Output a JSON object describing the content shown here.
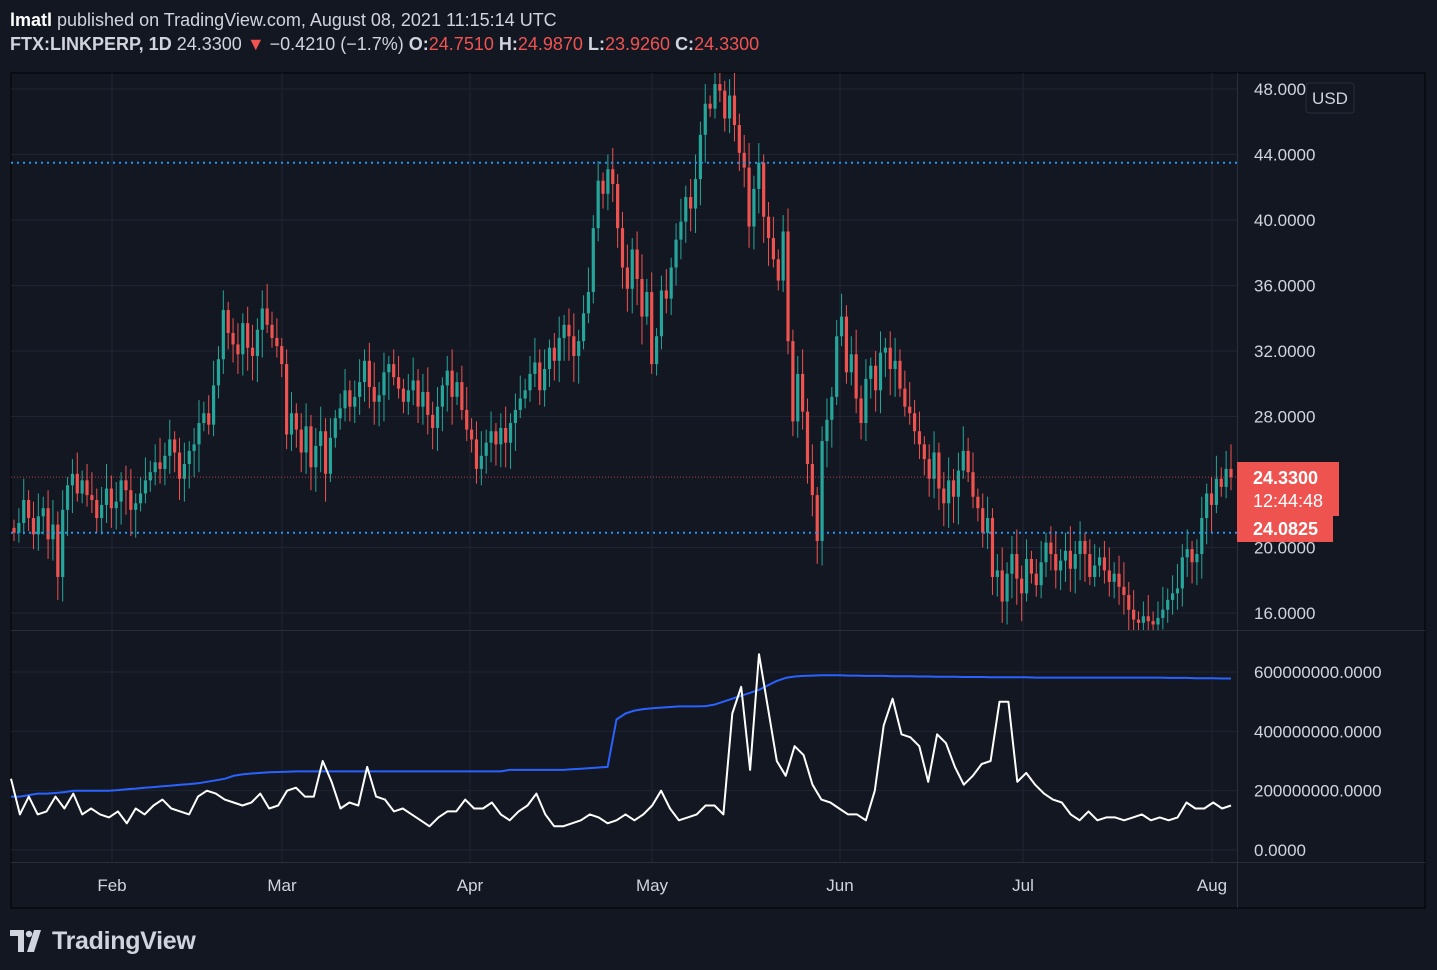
{
  "header": {
    "author": "lmatl",
    "published_text": " published on TradingView.com, August 08, 2021 11:15:14 UTC",
    "symbol": "FTX:LINKPERP, 1D",
    "last": "24.3300",
    "change_arrow": "▼",
    "change": "−0.4210 (−1.7%)",
    "o_label": "O:",
    "o_value": "24.7510",
    "h_label": "H:",
    "h_value": "24.9870",
    "l_label": "L:",
    "l_value": "23.9260",
    "c_label": "C:",
    "c_value": "24.3300"
  },
  "footer": {
    "brand": "TradingView"
  },
  "colors": {
    "background": "#131722",
    "grid": "#1f2433",
    "up": "#26a69a",
    "down": "#ef5350",
    "hline": "#2196f3",
    "volume": "#ffffff",
    "volume_ma": "#2962ff",
    "text": "#d1d4dc"
  },
  "chart_data": [
    {
      "type": "candlestick",
      "currency_label": "USD",
      "y_ticks": [
        "48.0000",
        "44.0000",
        "40.0000",
        "36.0000",
        "32.0000",
        "28.0000",
        "20.0000",
        "16.0000"
      ],
      "y_tick_values": [
        48,
        44,
        40,
        36,
        32,
        28,
        20,
        16
      ],
      "ylim": [
        15,
        49
      ],
      "x_ticks": [
        "Feb",
        "Mar",
        "Apr",
        "May",
        "Jun",
        "Jul",
        "Aug"
      ],
      "horizontal_lines": [
        43.5,
        20.9
      ],
      "last_price_label": "24.3300",
      "countdown_label": "12:44:48",
      "level_label": "24.0825",
      "closes": [
        20.9,
        21.5,
        22.9,
        21.8,
        20.8,
        21.9,
        22.4,
        20.5,
        21.4,
        18.2,
        22.3,
        23.8,
        24.5,
        23.3,
        24.1,
        23.2,
        22.9,
        21.8,
        22.6,
        23.6,
        22.4,
        22.8,
        24.1,
        23.5,
        22.3,
        22.7,
        23.3,
        24.1,
        24.6,
        25.2,
        24.8,
        25.6,
        26.6,
        25.8,
        24.2,
        25.1,
        25.9,
        26.3,
        27.6,
        28.2,
        27.5,
        29.9,
        31.5,
        34.5,
        33.1,
        32.4,
        31.8,
        33.7,
        32.2,
        31.7,
        33.3,
        34.6,
        33.6,
        32.8,
        32.3,
        31.2,
        26.9,
        28.2,
        27.2,
        25.8,
        27.4,
        24.9,
        26.2,
        27.1,
        24.5,
        26.7,
        27.9,
        28.5,
        29.6,
        28.6,
        29.2,
        30.1,
        31.4,
        29.8,
        28.9,
        29.3,
        30.7,
        31.2,
        30.4,
        29.7,
        28.9,
        29.6,
        30.2,
        28.6,
        29.5,
        28.1,
        27.3,
        28.6,
        29.9,
        30.8,
        29.2,
        30.1,
        28.4,
        27.2,
        26.6,
        24.8,
        25.6,
        26.4,
        27.1,
        26.3,
        27.3,
        26.4,
        27.6,
        28.4,
        29.1,
        29.6,
        30.6,
        31.3,
        29.6,
        30.9,
        32.2,
        31.4,
        32.8,
        33.6,
        32.9,
        31.7,
        32.6,
        34.3,
        35.6,
        39.5,
        42.4,
        41.6,
        43.1,
        42.2,
        39.5,
        37.1,
        35.8,
        38.2,
        36.4,
        34.1,
        35.6,
        31.2,
        32.9,
        35.7,
        35.2,
        37.1,
        38.8,
        39.9,
        41.4,
        40.7,
        42.5,
        45.2,
        47.1,
        46.8,
        48.3,
        47.9,
        46.2,
        47.6,
        45.8,
        44.1,
        43.2,
        39.6,
        41.9,
        43.5,
        40.2,
        38.9,
        37.6,
        36.3,
        39.3,
        32.6,
        27.7,
        30.6,
        28.3,
        25.1,
        23.2,
        20.4,
        26.5,
        27.8,
        29.2,
        32.9,
        34.1,
        30.7,
        31.8,
        29.1,
        27.6,
        30.3,
        31.1,
        29.6,
        31.9,
        32.2,
        30.9,
        31.4,
        29.7,
        28.6,
        28.2,
        27.1,
        26.3,
        25.4,
        24.2,
        25.8,
        23.6,
        22.7,
        24.1,
        23.1,
        24.7,
        25.9,
        24.6,
        23.1,
        22.4,
        20.9,
        21.8,
        18.2,
        18.6,
        16.7,
        18.4,
        19.6,
        18.1,
        17.2,
        19.3,
        18.4,
        17.7,
        19.1,
        20.3,
        19.6,
        18.6,
        19.2,
        19.8,
        18.7,
        19.6,
        20.4,
        19.6,
        18.2,
        18.9,
        19.4,
        18.6,
        17.9,
        18.4,
        17.6,
        17.1,
        16.2,
        15.6,
        15.4,
        15.8,
        15.5,
        15.3,
        15.7,
        16.2,
        16.8,
        17.2,
        17.5,
        19.4,
        19.9,
        19.1,
        19.6,
        21.8,
        23.3,
        22.6,
        24.2,
        23.7,
        24.8,
        24.3
      ]
    },
    {
      "type": "line",
      "y_ticks": [
        "600000000.0000",
        "400000000.0000",
        "200000000.0000",
        "0.0000"
      ],
      "y_tick_values": [
        600000000,
        400000000,
        200000000,
        0
      ],
      "ylim": [
        -30000000,
        680000000
      ],
      "series": [
        {
          "name": "",
          "step_days": 3,
          "values": [
            240,
            120,
            180,
            120,
            130,
            180,
            140,
            190,
            120,
            140,
            120,
            110,
            130,
            90,
            140,
            120,
            150,
            170,
            140,
            130,
            120,
            180,
            200,
            190,
            170,
            160,
            150,
            160,
            190,
            140,
            150,
            200,
            210,
            180,
            180,
            300,
            230,
            140,
            160,
            150,
            280,
            180,
            170,
            130,
            140,
            120,
            100,
            80,
            110,
            130,
            130,
            170,
            140,
            140,
            160,
            120,
            100,
            130,
            150,
            190,
            120,
            80,
            80,
            90,
            100,
            120,
            110,
            90,
            100,
            120,
            100,
            120,
            150,
            200,
            140,
            100,
            110,
            120,
            150,
            150,
            120,
            460,
            550,
            270,
            660,
            480,
            300,
            250,
            350,
            320,
            220,
            170,
            160,
            140,
            120,
            120,
            100,
            200,
            420,
            510,
            390,
            380,
            350,
            230,
            390,
            360,
            280,
            220,
            250,
            290,
            300,
            500,
            500,
            230,
            260,
            220,
            190,
            170,
            160,
            120,
            100,
            130,
            100,
            110,
            110,
            100,
            110,
            120,
            100,
            110,
            100,
            110,
            160,
            140,
            140,
            160,
            140,
            150
          ]
        },
        {
          "name": "",
          "step_days": 3,
          "values": [
            180,
            180,
            185,
            190,
            190,
            192,
            195,
            200,
            200,
            200,
            200,
            200,
            202,
            205,
            207,
            210,
            212,
            215,
            217,
            220,
            222,
            225,
            230,
            235,
            240,
            250,
            255,
            258,
            260,
            262,
            263,
            264,
            265,
            265,
            265,
            265,
            265,
            265,
            265,
            265,
            265,
            265,
            265,
            265,
            265,
            265,
            265,
            265,
            265,
            265,
            265,
            265,
            265,
            265,
            265,
            265,
            270,
            270,
            270,
            270,
            270,
            270,
            270,
            272,
            274,
            276,
            278,
            280,
            440,
            460,
            470,
            475,
            478,
            480,
            482,
            484,
            484,
            484,
            485,
            490,
            500,
            510,
            520,
            530,
            540,
            555,
            570,
            580,
            585,
            587,
            588,
            589,
            589,
            589,
            588,
            588,
            587,
            587,
            587,
            586,
            586,
            586,
            585,
            585,
            584,
            584,
            584,
            583,
            583,
            583,
            582,
            582,
            582,
            582,
            582,
            581,
            581,
            581,
            581,
            581,
            581,
            581,
            581,
            581,
            581,
            581,
            581,
            581,
            581,
            581,
            580,
            580,
            580,
            579,
            579,
            579,
            578,
            578
          ]
        }
      ]
    }
  ]
}
